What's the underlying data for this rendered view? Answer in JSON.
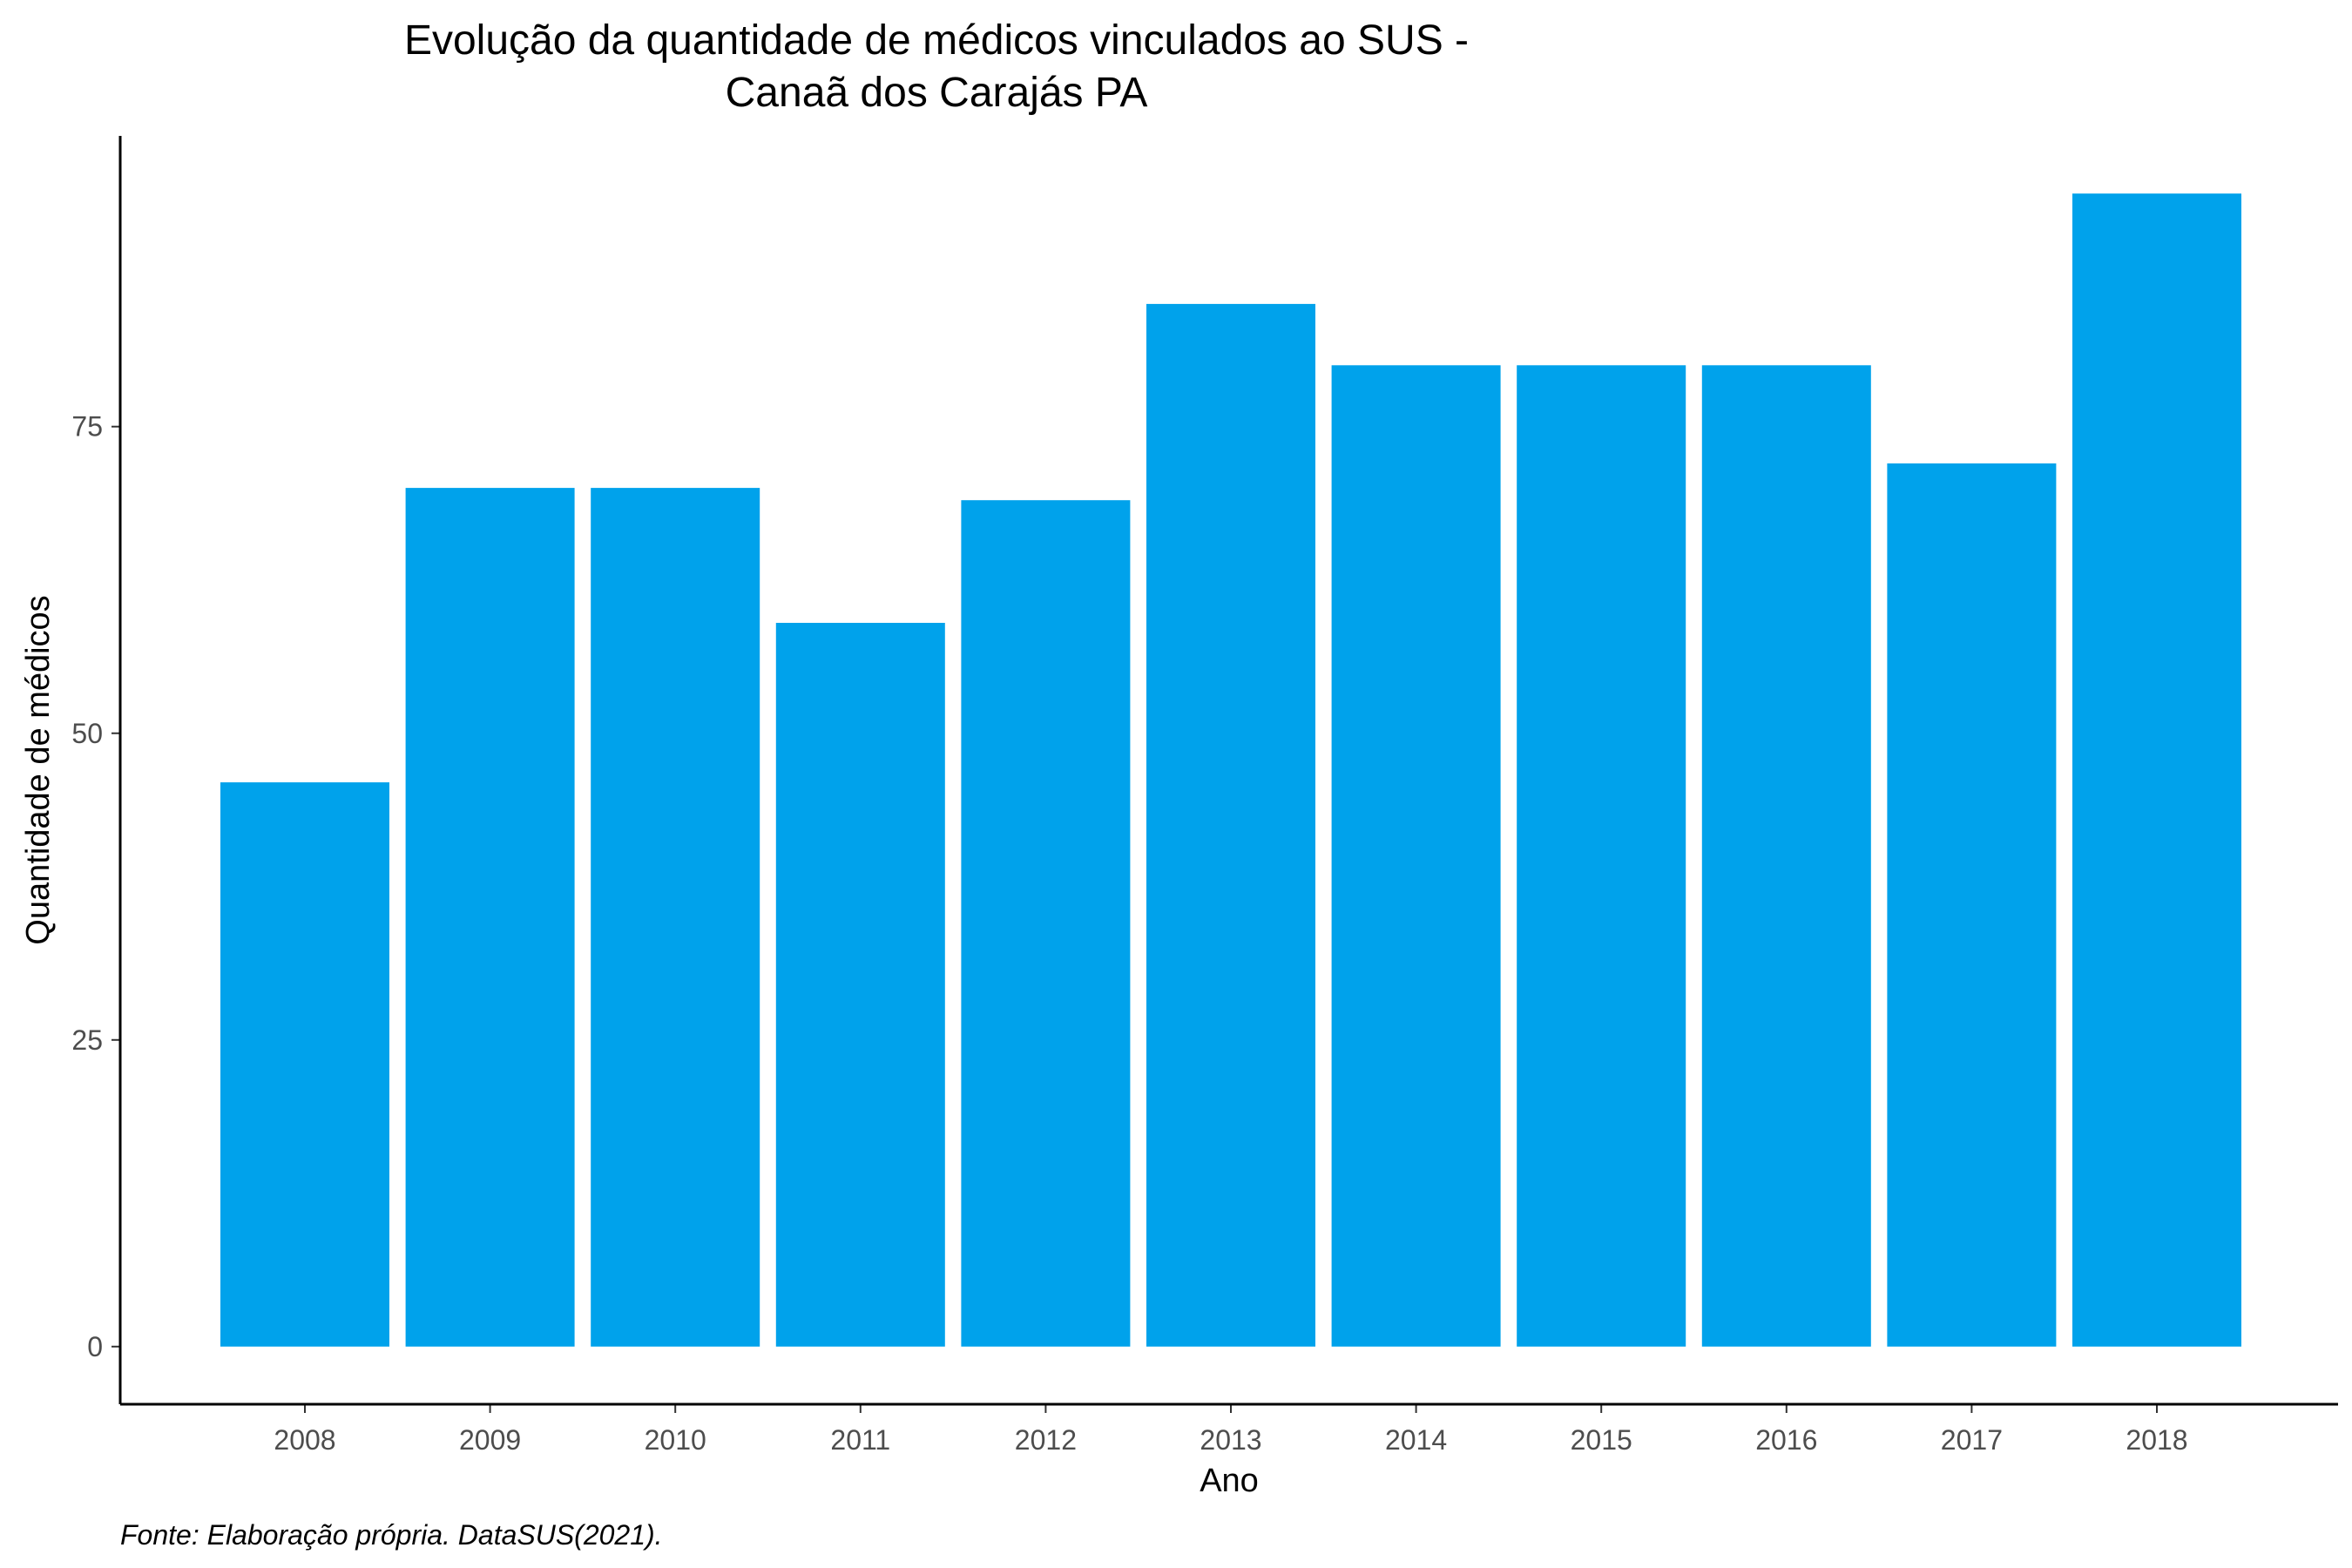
{
  "chart_data": {
    "type": "bar",
    "title_lines": [
      "Evolução da quantidade de médicos vinculados ao SUS -",
      "Canaã dos Carajás PA"
    ],
    "xlabel": "Ano",
    "ylabel": "Quantidade de médicos",
    "caption": "Fonte: Elaboração própria. DataSUS(2021).",
    "categories": [
      "2008",
      "2009",
      "2010",
      "2011",
      "2012",
      "2013",
      "2014",
      "2015",
      "2016",
      "2017",
      "2018"
    ],
    "values": [
      46,
      70,
      70,
      59,
      69,
      85,
      80,
      80,
      80,
      72,
      94
    ],
    "yticks": [
      0,
      25,
      50,
      75
    ],
    "ylim": [
      -4.7,
      98.7
    ],
    "bar_color": "#00A2EB",
    "grid": false,
    "legend": "none"
  }
}
